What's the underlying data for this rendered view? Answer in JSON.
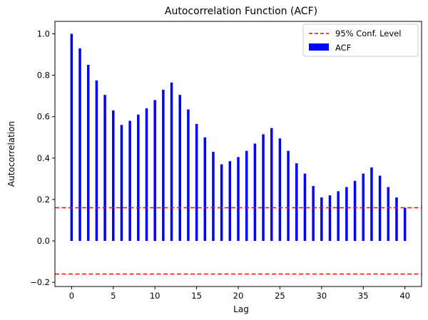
{
  "chart_data": {
    "type": "bar",
    "title": "Autocorrelation Function (ACF)",
    "xlabel": "Lag",
    "ylabel": "Autocorrelation",
    "xlim": [
      -2,
      42
    ],
    "ylim": [
      -0.22,
      1.06
    ],
    "xticks": [
      0,
      5,
      10,
      15,
      20,
      25,
      30,
      35,
      40
    ],
    "yticks": [
      -0.2,
      0.0,
      0.2,
      0.4,
      0.6,
      0.8,
      1.0
    ],
    "ytick_labels": [
      "−0.2",
      "0.0",
      "0.2",
      "0.4",
      "0.6",
      "0.8",
      "1.0"
    ],
    "grid": false,
    "legend_position": "top-right",
    "series": [
      {
        "name": "ACF",
        "color": "#0000ff",
        "x": [
          0,
          1,
          2,
          3,
          4,
          5,
          6,
          7,
          8,
          9,
          10,
          11,
          12,
          13,
          14,
          15,
          16,
          17,
          18,
          19,
          20,
          21,
          22,
          23,
          24,
          25,
          26,
          27,
          28,
          29,
          30,
          31,
          32,
          33,
          34,
          35,
          36,
          37,
          38,
          39,
          40
        ],
        "values": [
          1.0,
          0.93,
          0.85,
          0.775,
          0.705,
          0.63,
          0.56,
          0.58,
          0.61,
          0.64,
          0.68,
          0.73,
          0.765,
          0.705,
          0.635,
          0.565,
          0.5,
          0.43,
          0.37,
          0.385,
          0.405,
          0.435,
          0.47,
          0.515,
          0.545,
          0.495,
          0.435,
          0.375,
          0.325,
          0.265,
          0.21,
          0.22,
          0.24,
          0.26,
          0.29,
          0.325,
          0.355,
          0.315,
          0.26,
          0.21,
          0.16
        ]
      }
    ],
    "reference_lines": [
      {
        "name": "95% Conf. Level",
        "values": [
          0.16,
          -0.16
        ],
        "color": "#ff0000",
        "style": "dashed"
      }
    ]
  }
}
